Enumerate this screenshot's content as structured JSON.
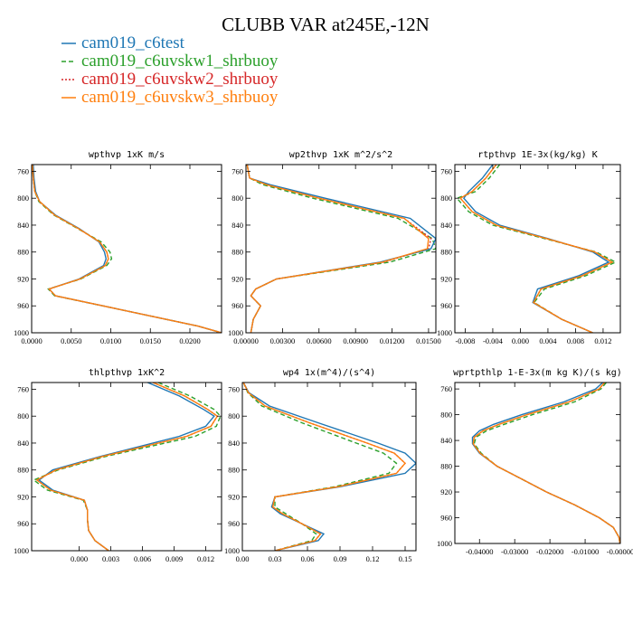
{
  "title": "CLUBB VAR at245E,-12N",
  "legend": [
    {
      "label": "cam019_c6test",
      "color": "#1f77b4",
      "dash": "solid"
    },
    {
      "label": "cam019_c6uvskw1_shrbuoy",
      "color": "#2ca02c",
      "dash": "dash"
    },
    {
      "label": "cam019_c6uvskw2_shrbuoy",
      "color": "#d62728",
      "dash": "dot"
    },
    {
      "label": "cam019_c6uvskw3_shrbuoy",
      "color": "#ff7f0e",
      "dash": "solid"
    }
  ],
  "chart_data": [
    {
      "type": "line",
      "title": "wpthvp  1xK m/s",
      "ylim": [
        1000,
        750
      ],
      "yticks": [
        760,
        800,
        840,
        880,
        920,
        960,
        1000
      ],
      "ytick_labels": [
        "760",
        "800",
        "840",
        "880",
        "920",
        "960",
        "1000"
      ],
      "xlim": [
        0,
        0.024
      ],
      "xticks": [
        0,
        0.005,
        0.01,
        0.015,
        0.02
      ],
      "xtick_labels": [
        "0.0000",
        "0.0050",
        "0.0100",
        "0.0150",
        "0.0200"
      ],
      "y": [
        750,
        770,
        790,
        805,
        825,
        845,
        865,
        880,
        890,
        900,
        920,
        935,
        945,
        960,
        975,
        990,
        1000
      ],
      "series": [
        {
          "values": [
            0.0002,
            0.0003,
            0.0005,
            0.001,
            0.003,
            0.006,
            0.0085,
            0.0092,
            0.0094,
            0.0091,
            0.006,
            0.0022,
            0.003,
            0.009,
            0.015,
            0.021,
            0.024
          ]
        },
        {
          "values": [
            0.0001,
            0.0002,
            0.0004,
            0.0009,
            0.0028,
            0.0058,
            0.0088,
            0.0099,
            0.0101,
            0.0095,
            0.0062,
            0.0021,
            0.0029,
            0.009,
            0.015,
            0.021,
            0.024
          ]
        },
        {
          "values": [
            0.0001,
            0.0002,
            0.0004,
            0.001,
            0.0029,
            0.0059,
            0.0086,
            0.0095,
            0.0097,
            0.0093,
            0.0061,
            0.0022,
            0.003,
            0.009,
            0.015,
            0.021,
            0.024
          ]
        },
        {
          "values": [
            0.0001,
            0.0002,
            0.0004,
            0.001,
            0.0029,
            0.0059,
            0.0086,
            0.0095,
            0.0097,
            0.0093,
            0.0061,
            0.0022,
            0.003,
            0.009,
            0.015,
            0.021,
            0.024
          ]
        }
      ]
    },
    {
      "type": "line",
      "title": "wp2thvp  1xK m^2/s^2",
      "ylim": [
        1000,
        750
      ],
      "yticks": [
        760,
        800,
        840,
        880,
        920,
        960,
        1000
      ],
      "ytick_labels": [
        "760",
        "800",
        "840",
        "880",
        "920",
        "960",
        "1000"
      ],
      "xlim": [
        0,
        0.0156
      ],
      "xticks": [
        0,
        0.003,
        0.006,
        0.009,
        0.012,
        0.015
      ],
      "xtick_labels": [
        "0.00000",
        "0.00300",
        "0.00600",
        "0.00900",
        "0.01200",
        "0.01500"
      ],
      "y": [
        750,
        770,
        780,
        800,
        830,
        860,
        875,
        895,
        920,
        935,
        945,
        960,
        980,
        1000
      ],
      "series": [
        {
          "values": [
            0.0001,
            0.0003,
            0.002,
            0.0065,
            0.0135,
            0.0156,
            0.0152,
            0.011,
            0.0025,
            0.0008,
            0.0004,
            0.0012,
            0.0006,
            0.0004
          ]
        },
        {
          "values": [
            0.0001,
            0.0003,
            0.0014,
            0.0055,
            0.0125,
            0.0153,
            0.0156,
            0.0118,
            0.0025,
            0.0008,
            0.0004,
            0.0012,
            0.0006,
            0.0004
          ]
        },
        {
          "values": [
            0.0001,
            0.0003,
            0.0017,
            0.006,
            0.013,
            0.0152,
            0.015,
            0.0113,
            0.0025,
            0.0008,
            0.0004,
            0.0012,
            0.0006,
            0.0004
          ]
        },
        {
          "values": [
            0.0001,
            0.0003,
            0.0017,
            0.006,
            0.013,
            0.015,
            0.0149,
            0.0112,
            0.0025,
            0.0008,
            0.0004,
            0.0012,
            0.0006,
            0.0004
          ]
        }
      ]
    },
    {
      "type": "line",
      "title": "rtpthvp  1E-3x(kg/kg) K",
      "ylim": [
        1000,
        750
      ],
      "yticks": [
        760,
        800,
        840,
        880,
        920,
        960,
        1000
      ],
      "ytick_labels": [
        "760",
        "800",
        "840",
        "880",
        "920",
        "960",
        "1000"
      ],
      "xlim": [
        -0.0095,
        0.0145
      ],
      "xticks": [
        -0.008,
        -0.004,
        0,
        0.004,
        0.008,
        0.012
      ],
      "xtick_labels": [
        "-0.008",
        "-0.004",
        "0.000",
        "0.004",
        "0.008",
        "0.012"
      ],
      "y": [
        750,
        770,
        790,
        800,
        820,
        840,
        860,
        880,
        895,
        915,
        935,
        955,
        980,
        1000
      ],
      "series": [
        {
          "values": [
            -0.004,
            -0.0055,
            -0.0075,
            -0.0082,
            -0.0065,
            -0.003,
            0.004,
            0.0105,
            0.0128,
            0.0085,
            0.0025,
            0.0018,
            0.006,
            0.0105
          ]
        },
        {
          "values": [
            -0.003,
            -0.0045,
            -0.0065,
            -0.0092,
            -0.0075,
            -0.004,
            0.0035,
            0.011,
            0.0138,
            0.0095,
            0.0035,
            0.002,
            0.006,
            0.0105
          ]
        },
        {
          "values": [
            -0.0035,
            -0.005,
            -0.007,
            -0.0087,
            -0.007,
            -0.0035,
            0.0038,
            0.0108,
            0.0133,
            0.009,
            0.003,
            0.0019,
            0.006,
            0.0105
          ]
        },
        {
          "values": [
            -0.0035,
            -0.005,
            -0.007,
            -0.0087,
            -0.007,
            -0.0035,
            0.0038,
            0.0108,
            0.0133,
            0.009,
            0.003,
            0.0019,
            0.006,
            0.0105
          ]
        }
      ]
    },
    {
      "type": "line",
      "title": "thlpthvp  1xK^2",
      "ylim": [
        1000,
        750
      ],
      "yticks": [
        760,
        800,
        840,
        880,
        920,
        960,
        1000
      ],
      "ytick_labels": [
        "760",
        "800",
        "840",
        "880",
        "920",
        "960",
        "1000"
      ],
      "xlim": [
        -0.0045,
        0.0135
      ],
      "xticks": [
        0,
        0.003,
        0.006,
        0.009,
        0.012
      ],
      "xtick_labels": [
        "0.000",
        "0.003",
        "0.006",
        "0.009",
        "0.012"
      ],
      "y": [
        750,
        770,
        790,
        800,
        815,
        830,
        860,
        880,
        895,
        910,
        925,
        940,
        955,
        970,
        985,
        1000
      ],
      "series": [
        {
          "values": [
            0.0065,
            0.0095,
            0.0118,
            0.0128,
            0.012,
            0.0095,
            0.002,
            -0.0025,
            -0.0038,
            -0.0025,
            0.0005,
            0.0008,
            0.0008,
            0.0009,
            0.0015,
            0.0028
          ]
        },
        {
          "values": [
            0.0075,
            0.0105,
            0.0128,
            0.0134,
            0.013,
            0.011,
            0.0025,
            -0.002,
            -0.0043,
            -0.003,
            0.0004,
            0.0008,
            0.0008,
            0.0009,
            0.0015,
            0.0028
          ]
        },
        {
          "values": [
            0.007,
            0.01,
            0.0122,
            0.0131,
            0.0125,
            0.0102,
            0.0022,
            -0.0022,
            -0.004,
            -0.0027,
            0.0005,
            0.0008,
            0.0008,
            0.0009,
            0.0015,
            0.0028
          ]
        },
        {
          "values": [
            0.007,
            0.01,
            0.0122,
            0.0131,
            0.0125,
            0.0102,
            0.0022,
            -0.0022,
            -0.004,
            -0.0027,
            0.0005,
            0.0008,
            0.0008,
            0.0009,
            0.0015,
            0.0028
          ]
        }
      ]
    },
    {
      "type": "line",
      "title": "wp4  1x(m^4)/(s^4)",
      "ylim": [
        1000,
        750
      ],
      "yticks": [
        760,
        800,
        840,
        880,
        920,
        960,
        1000
      ],
      "ytick_labels": [
        "760",
        "800",
        "840",
        "880",
        "920",
        "960",
        "1000"
      ],
      "xlim": [
        0,
        0.16
      ],
      "xticks": [
        0,
        0.03,
        0.06,
        0.09,
        0.12,
        0.15
      ],
      "xtick_labels": [
        "0.00",
        "0.03",
        "0.06",
        "0.09",
        "0.12",
        "0.15"
      ],
      "y": [
        750,
        765,
        785,
        810,
        840,
        855,
        870,
        885,
        905,
        920,
        935,
        945,
        960,
        975,
        985,
        1000
      ],
      "series": [
        {
          "values": [
            0.001,
            0.006,
            0.025,
            0.07,
            0.125,
            0.15,
            0.16,
            0.15,
            0.09,
            0.03,
            0.027,
            0.035,
            0.055,
            0.075,
            0.07,
            0.03
          ]
        },
        {
          "values": [
            0.001,
            0.005,
            0.018,
            0.055,
            0.105,
            0.13,
            0.142,
            0.135,
            0.085,
            0.03,
            0.03,
            0.04,
            0.055,
            0.068,
            0.064,
            0.03
          ]
        },
        {
          "values": [
            0.001,
            0.0055,
            0.021,
            0.062,
            0.115,
            0.14,
            0.15,
            0.142,
            0.088,
            0.03,
            0.028,
            0.037,
            0.055,
            0.072,
            0.067,
            0.03
          ]
        },
        {
          "values": [
            0.001,
            0.0055,
            0.021,
            0.062,
            0.115,
            0.14,
            0.15,
            0.142,
            0.088,
            0.03,
            0.028,
            0.037,
            0.055,
            0.072,
            0.067,
            0.03
          ]
        }
      ]
    },
    {
      "type": "line",
      "title": "wprtpthlp  1-E-3x(m kg K)/(s kg)",
      "ylim": [
        1000,
        750
      ],
      "yticks": [
        760,
        800,
        840,
        880,
        920,
        960,
        1000
      ],
      "ytick_labels": [
        "760",
        "800",
        "840",
        "880",
        "920",
        "960",
        "1000"
      ],
      "xlim": [
        -0.047,
        0
      ],
      "xticks": [
        -0.04,
        -0.03,
        -0.02,
        -0.01,
        0
      ],
      "xtick_labels": [
        "-0.04000",
        "-0.03000",
        "-0.02000",
        "-0.01000",
        "-0.00000"
      ],
      "y": [
        750,
        760,
        780,
        800,
        815,
        825,
        835,
        845,
        860,
        880,
        900,
        920,
        940,
        960,
        975,
        990,
        1000
      ],
      "series": [
        {
          "values": [
            -0.005,
            -0.007,
            -0.016,
            -0.028,
            -0.036,
            -0.04,
            -0.042,
            -0.042,
            -0.04,
            -0.035,
            -0.028,
            -0.021,
            -0.013,
            -0.006,
            -0.002,
            -0.0004,
            -0.0001
          ]
        },
        {
          "values": [
            -0.004,
            -0.0055,
            -0.013,
            -0.025,
            -0.033,
            -0.038,
            -0.041,
            -0.0415,
            -0.0395,
            -0.035,
            -0.028,
            -0.021,
            -0.013,
            -0.006,
            -0.002,
            -0.0004,
            -0.0001
          ]
        },
        {
          "values": [
            -0.0045,
            -0.006,
            -0.0145,
            -0.0265,
            -0.0345,
            -0.039,
            -0.0415,
            -0.0418,
            -0.0398,
            -0.035,
            -0.028,
            -0.021,
            -0.013,
            -0.006,
            -0.002,
            -0.0004,
            -0.0001
          ]
        },
        {
          "values": [
            -0.0045,
            -0.006,
            -0.0145,
            -0.0265,
            -0.0345,
            -0.039,
            -0.0415,
            -0.0418,
            -0.0398,
            -0.035,
            -0.028,
            -0.021,
            -0.013,
            -0.006,
            -0.002,
            -0.0004,
            -0.0001
          ]
        }
      ]
    }
  ]
}
